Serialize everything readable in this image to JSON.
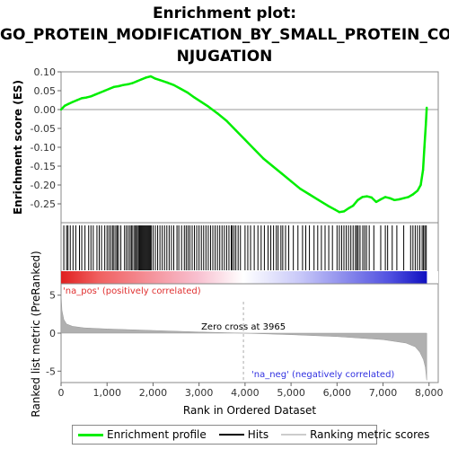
{
  "title_lines": [
    "Enrichment plot:",
    "GO_PROTEIN_MODIFICATION_BY_SMALL_PROTEIN_CO",
    "NJUGATION"
  ],
  "colors": {
    "es_line": "#00ee00",
    "hit": "#000000",
    "metric_fill": "#b0b0b0",
    "pos_label": "#e03030",
    "neg_label": "#3030e0",
    "zero_line": "#999999"
  },
  "chart_data": [
    {
      "type": "line",
      "panel": "enrichment",
      "ylabel": "Enrichment score (ES)",
      "ylim": [
        -0.3,
        0.1
      ],
      "yticks": [
        0.1,
        0.05,
        0.0,
        -0.05,
        -0.1,
        -0.15,
        -0.2,
        -0.25
      ],
      "ytick_labels": [
        "0.10",
        "0.05",
        "0.00",
        "-0.05",
        "-0.10",
        "-0.15",
        "-0.20",
        "-0.25"
      ],
      "xlim": [
        0,
        8200
      ],
      "series": [
        {
          "x": [
            0,
            80,
            160,
            250,
            350,
            450,
            550,
            650,
            750,
            850,
            950,
            1050,
            1150,
            1250,
            1350,
            1450,
            1550,
            1650,
            1750,
            1850,
            1950,
            2050,
            2150,
            2300,
            2450,
            2600,
            2750,
            2900,
            3050,
            3200,
            3400,
            3600,
            3800,
            4000,
            4200,
            4400,
            4600,
            4800,
            5000,
            5200,
            5400,
            5600,
            5800,
            5950,
            6050,
            6150,
            6250,
            6350,
            6450,
            6550,
            6650,
            6750,
            6850,
            6950,
            7050,
            7150,
            7250,
            7350,
            7450,
            7550,
            7650,
            7750,
            7820,
            7870,
            7900,
            7930,
            7950
          ],
          "values": [
            0.0,
            0.01,
            0.015,
            0.02,
            0.025,
            0.03,
            0.032,
            0.035,
            0.04,
            0.045,
            0.05,
            0.055,
            0.06,
            0.062,
            0.065,
            0.067,
            0.07,
            0.075,
            0.08,
            0.085,
            0.088,
            0.082,
            0.078,
            0.072,
            0.065,
            0.055,
            0.045,
            0.032,
            0.02,
            0.008,
            -0.01,
            -0.03,
            -0.055,
            -0.08,
            -0.105,
            -0.13,
            -0.15,
            -0.17,
            -0.19,
            -0.21,
            -0.225,
            -0.24,
            -0.255,
            -0.265,
            -0.272,
            -0.27,
            -0.262,
            -0.255,
            -0.24,
            -0.232,
            -0.23,
            -0.233,
            -0.245,
            -0.238,
            -0.232,
            -0.235,
            -0.24,
            -0.238,
            -0.235,
            -0.232,
            -0.225,
            -0.215,
            -0.2,
            -0.16,
            -0.1,
            -0.04,
            0.005
          ]
        }
      ]
    },
    {
      "type": "table",
      "panel": "hits",
      "hit_ranks": [
        60,
        120,
        150,
        200,
        260,
        320,
        400,
        450,
        520,
        600,
        650,
        700,
        780,
        830,
        880,
        950,
        1000,
        1040,
        1080,
        1120,
        1150,
        1190,
        1220,
        1250,
        1300,
        1380,
        1420,
        1460,
        1500,
        1530,
        1560,
        1600,
        1620,
        1650,
        1680,
        1700,
        1720,
        1740,
        1760,
        1780,
        1800,
        1820,
        1840,
        1860,
        1880,
        1900,
        1920,
        1940,
        1960,
        2000,
        2050,
        2100,
        2150,
        2200,
        2250,
        2300,
        2350,
        2400,
        2450,
        2520,
        2560,
        2620,
        2680,
        2720,
        2760,
        2800,
        2850,
        2900,
        2950,
        3000,
        3050,
        3100,
        3150,
        3200,
        3250,
        3300,
        3350,
        3400,
        3450,
        3500,
        3550,
        3600,
        3650,
        3700,
        3720,
        3760,
        3800,
        3850,
        3900,
        4000,
        4060,
        4120,
        4200,
        4280,
        4350,
        4420,
        4500,
        4560,
        4620,
        4680,
        4720,
        4780,
        4820,
        4880,
        4950,
        5050,
        5150,
        5250,
        5320,
        5400,
        5500,
        5580,
        5660,
        5740,
        5820,
        5900,
        6000,
        6050,
        6100,
        6150,
        6200,
        6250,
        6300,
        6350,
        6400,
        6430,
        6460,
        6500,
        6560,
        6600,
        6640,
        6700,
        6800,
        6950,
        7050,
        7100,
        7200,
        7300,
        7450,
        7600,
        7650,
        7700,
        7750,
        7800,
        7850,
        7880,
        7910,
        7940
      ]
    },
    {
      "type": "area",
      "panel": "ranked_metric",
      "xlabel": "Rank in Ordered Dataset",
      "ylabel": "Ranked list metric (PreRanked)",
      "ylim": [
        -6.5,
        6.5
      ],
      "yticks": [
        5,
        0,
        -5
      ],
      "ytick_labels": [
        "5",
        "0",
        "-5"
      ],
      "xlim": [
        0,
        8200
      ],
      "xticks": [
        0,
        1000,
        2000,
        3000,
        4000,
        5000,
        6000,
        7000,
        8000
      ],
      "xtick_labels": [
        "0",
        "1,000",
        "2,000",
        "3,000",
        "4,000",
        "5,000",
        "6,000",
        "7,000",
        "8,000"
      ],
      "x": [
        0,
        20,
        60,
        120,
        250,
        500,
        1000,
        2000,
        3000,
        3965,
        5000,
        6000,
        7000,
        7500,
        7700,
        7800,
        7880,
        7920,
        7950
      ],
      "values": [
        5.2,
        3.0,
        1.8,
        1.2,
        0.9,
        0.7,
        0.55,
        0.35,
        0.15,
        0.0,
        -0.2,
        -0.45,
        -0.85,
        -1.3,
        -1.8,
        -2.5,
        -3.5,
        -4.5,
        -6.2
      ],
      "zero_cross": 3965
    }
  ],
  "labels": {
    "pos": "'na_pos' (positively correlated)",
    "neg": "'na_neg' (negatively correlated)",
    "zero_cross": "Zero cross at 3965"
  },
  "legend": [
    {
      "label": "Enrichment profile",
      "color": "#00ee00",
      "thickness": 3
    },
    {
      "label": "Hits",
      "color": "#000000",
      "thickness": 2
    },
    {
      "label": "Ranking metric scores",
      "color": "#cccccc",
      "thickness": 2
    }
  ]
}
